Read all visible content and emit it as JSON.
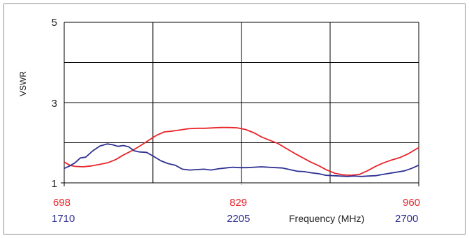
{
  "chart_data": {
    "type": "line",
    "ylabel": "VSWR",
    "xlabel": "Frequency (MHz)",
    "ylim": [
      1,
      5
    ],
    "y_ticks": [
      "5",
      "3",
      "1"
    ],
    "y_gridlines": [
      1,
      2,
      3,
      4,
      5
    ],
    "x_gridline_count": 4,
    "grid": true,
    "x_ticks_band1": [
      "698",
      "829",
      "960"
    ],
    "x_ticks_band2": [
      "1710",
      "2205",
      "2700"
    ],
    "colors": {
      "band1": "#e8242a",
      "band2": "#2e3192",
      "grid": "#000000"
    },
    "series": [
      {
        "color": "#e8242a",
        "xlim": [
          698,
          960
        ],
        "x": [
          698,
          702,
          706,
          712,
          718,
          724,
          730,
          736,
          742,
          748,
          754,
          760,
          766,
          772,
          778,
          784,
          790,
          796,
          802,
          808,
          814,
          820,
          826,
          832,
          838,
          844,
          850,
          856,
          862,
          868,
          874,
          880,
          886,
          892,
          898,
          904,
          910,
          916,
          922,
          928,
          934,
          940,
          946,
          952,
          956,
          960
        ],
        "values": [
          1.52,
          1.44,
          1.41,
          1.4,
          1.42,
          1.46,
          1.5,
          1.58,
          1.7,
          1.8,
          1.92,
          2.05,
          2.18,
          2.27,
          2.29,
          2.32,
          2.35,
          2.36,
          2.36,
          2.37,
          2.38,
          2.38,
          2.37,
          2.33,
          2.25,
          2.14,
          2.06,
          1.98,
          1.86,
          1.74,
          1.63,
          1.52,
          1.43,
          1.32,
          1.24,
          1.2,
          1.19,
          1.21,
          1.3,
          1.41,
          1.5,
          1.57,
          1.63,
          1.72,
          1.8,
          1.88
        ]
      },
      {
        "color": "#2e3192",
        "xlim": [
          1710,
          2700
        ],
        "x": [
          1710,
          1725,
          1740,
          1755,
          1770,
          1790,
          1810,
          1830,
          1845,
          1860,
          1875,
          1890,
          1905,
          1920,
          1940,
          1960,
          1980,
          2000,
          2020,
          2040,
          2060,
          2080,
          2100,
          2120,
          2140,
          2160,
          2180,
          2200,
          2220,
          2240,
          2260,
          2280,
          2300,
          2320,
          2340,
          2360,
          2380,
          2400,
          2420,
          2440,
          2460,
          2480,
          2500,
          2520,
          2540,
          2560,
          2580,
          2600,
          2620,
          2640,
          2660,
          2680,
          2700
        ],
        "values": [
          1.36,
          1.42,
          1.5,
          1.62,
          1.64,
          1.8,
          1.92,
          1.97,
          1.95,
          1.91,
          1.93,
          1.9,
          1.8,
          1.77,
          1.76,
          1.66,
          1.55,
          1.48,
          1.44,
          1.34,
          1.32,
          1.33,
          1.34,
          1.32,
          1.35,
          1.37,
          1.39,
          1.38,
          1.38,
          1.39,
          1.4,
          1.39,
          1.38,
          1.37,
          1.33,
          1.29,
          1.28,
          1.25,
          1.23,
          1.19,
          1.18,
          1.17,
          1.16,
          1.17,
          1.16,
          1.17,
          1.18,
          1.21,
          1.24,
          1.27,
          1.3,
          1.36,
          1.44
        ]
      }
    ]
  }
}
